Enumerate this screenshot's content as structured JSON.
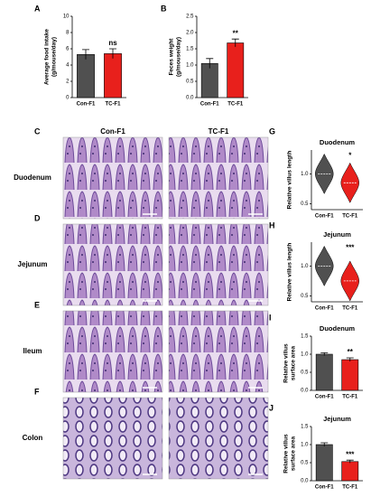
{
  "chart_data": [
    {
      "type": "bar",
      "label": "A",
      "ylabel": [
        "Average food intake",
        "(g/mouse/day)"
      ],
      "categories": [
        "Con-F1",
        "TC-F1"
      ],
      "values": [
        5.3,
        5.4
      ],
      "errors": [
        0.6,
        0.6
      ],
      "colors": [
        "#505050",
        "#e8201c"
      ],
      "annotation": "ns",
      "ylim": [
        0,
        10
      ],
      "yticks": [
        0,
        2,
        4,
        6,
        8,
        10
      ]
    },
    {
      "type": "bar",
      "label": "B",
      "ylabel": [
        "Feces weight",
        "(g/mouse/day)"
      ],
      "categories": [
        "Con-F1",
        "TC-F1"
      ],
      "values": [
        1.05,
        1.68
      ],
      "errors": [
        0.15,
        0.12
      ],
      "colors": [
        "#505050",
        "#e8201c"
      ],
      "annotation": "**",
      "ylim": [
        0,
        2.5
      ],
      "yticks": [
        {
          "value": 0,
          "label": "0.0"
        },
        0.5,
        {
          "value": 1,
          "label": "1.0"
        },
        1.5,
        {
          "value": 2,
          "label": "2.0"
        },
        2.5
      ]
    },
    {
      "type": "violin",
      "label": "G",
      "title": "Duodenum",
      "ylabel": [
        "Relative villus length"
      ],
      "categories": [
        "Con-F1",
        "TC-F1"
      ],
      "values": [
        1.0,
        0.85
      ],
      "colors": [
        "#505050",
        "#e8201c"
      ],
      "annotation": "*",
      "ylim": [
        0.4,
        1.4
      ],
      "yticks": [
        0.5,
        {
          "value": 1,
          "label": "1.0"
        }
      ]
    },
    {
      "type": "violin",
      "label": "H",
      "title": "Jejunum",
      "ylabel": [
        "Relative villus length"
      ],
      "categories": [
        "Con-F1",
        "TC-F1"
      ],
      "values": [
        1.0,
        0.75
      ],
      "colors": [
        "#505050",
        "#e8201c"
      ],
      "annotation": "***",
      "ylim": [
        0.4,
        1.4
      ],
      "yticks": [
        0.5,
        {
          "value": 1,
          "label": "1.0"
        }
      ]
    },
    {
      "type": "bar",
      "label": "I",
      "title": "Duodenum",
      "ylabel": [
        "Relative villus",
        "surface area"
      ],
      "categories": [
        "Con-F1",
        "TC-F1"
      ],
      "values": [
        1.0,
        0.85
      ],
      "errors": [
        0.04,
        0.05
      ],
      "colors": [
        "#505050",
        "#e8201c"
      ],
      "annotation": "**",
      "ylim": [
        0,
        1.5
      ],
      "yticks": [
        {
          "value": 0,
          "label": "0.0"
        },
        0.5,
        {
          "value": 1,
          "label": "1.0"
        },
        1.5
      ]
    },
    {
      "type": "bar",
      "label": "J",
      "title": "Jejunum",
      "ylabel": [
        "Relative villus",
        "surface area"
      ],
      "categories": [
        "Con-F1",
        "TC-F1"
      ],
      "values": [
        1.0,
        0.53
      ],
      "errors": [
        0.05,
        0.04
      ],
      "colors": [
        "#505050",
        "#e8201c"
      ],
      "annotation": "***",
      "ylim": [
        0,
        1.5
      ],
      "yticks": [
        {
          "value": 0,
          "label": "0.0"
        },
        0.5,
        {
          "value": 1,
          "label": "1.0"
        },
        1.5
      ]
    }
  ],
  "micrographs": {
    "columns": [
      "Con-F1",
      "TC-F1"
    ],
    "rows": [
      {
        "letter": "C",
        "name": "Duodenum"
      },
      {
        "letter": "D",
        "name": "Jejunum"
      },
      {
        "letter": "E",
        "name": "Ileum"
      },
      {
        "letter": "F",
        "name": "Colon"
      }
    ]
  }
}
